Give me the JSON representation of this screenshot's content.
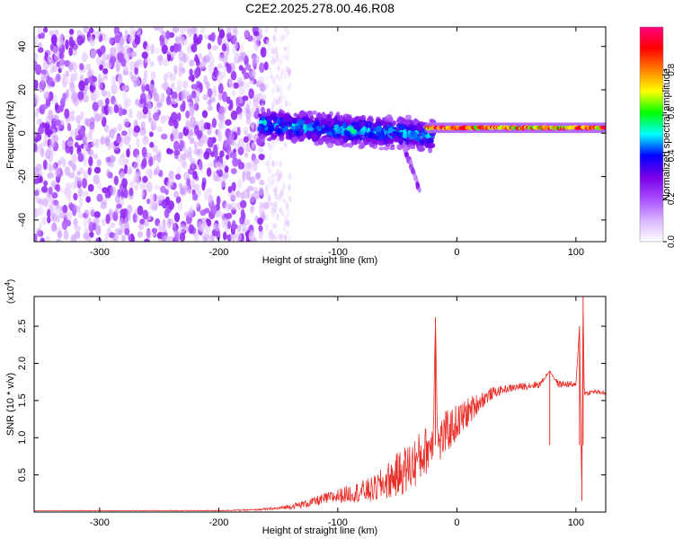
{
  "title": "C2E2.2025.278.00.46.R08",
  "chart_data": [
    {
      "type": "heatmap",
      "xlabel": "Height of straight line (km)",
      "ylabel": "Frequency (Hz)",
      "xlim": [
        -355,
        125
      ],
      "ylim": [
        -50,
        49
      ],
      "xticks": [
        -300,
        -200,
        -100,
        0,
        100
      ],
      "xtick_labels": [
        "-300",
        "-200",
        "-100",
        "0",
        "100"
      ],
      "yticks": [
        -40,
        -20,
        0,
        20,
        40
      ],
      "ytick_labels": [
        "-40",
        "-20",
        "0",
        "20",
        "40"
      ],
      "colorbar": {
        "label": "Normalized spectral amplitude",
        "range": [
          0,
          1
        ],
        "ticks": [
          0,
          0.2,
          0.4,
          0.6,
          0.8
        ],
        "tick_labels": [
          "0.0",
          "0.2",
          "0.4",
          "0.6",
          "0.8"
        ],
        "colors": [
          "#ffffff",
          "#d9b3ff",
          "#a64dff",
          "#7a00e6",
          "#0000ff",
          "#00ffff",
          "#00ff00",
          "#ffff00",
          "#ff8000",
          "#ff0000",
          "#ff0080"
        ]
      },
      "regions": [
        {
          "name": "noise",
          "x_range": [
            -355,
            -160
          ],
          "freq_range": [
            -50,
            49
          ],
          "amplitude": [
            0.05,
            0.15
          ]
        },
        {
          "name": "fade",
          "x_range": [
            -160,
            -140
          ],
          "freq_range": [
            -50,
            49
          ],
          "amplitude": [
            0.03,
            0.1
          ]
        },
        {
          "name": "band",
          "x_range": [
            -165,
            -20
          ],
          "freq_center_start": 4,
          "freq_center_end": -1,
          "half_width": 8,
          "amplitude": [
            0.15,
            0.5
          ]
        },
        {
          "name": "tail",
          "x_range": [
            -45,
            -30
          ],
          "freq_range": [
            -28,
            -5
          ],
          "amplitude": [
            0.1,
            0.3
          ]
        },
        {
          "name": "line",
          "x_range": [
            -25,
            125
          ],
          "freq_center": 2.5,
          "half_width": 2.5,
          "amplitude": [
            0.6,
            1.0
          ]
        }
      ]
    },
    {
      "type": "line",
      "xlabel": "Height of straight line (km)",
      "ylabel": "SNR (10 * v/v)",
      "y_multiplier": "(x10^4)",
      "y_multiplier_base": "(x10",
      "y_multiplier_exp": "4",
      "y_multiplier_close": ")",
      "xlim": [
        -355,
        125
      ],
      "ylim": [
        0,
        2.9
      ],
      "xticks": [
        -300,
        -200,
        -100,
        0,
        100
      ],
      "xtick_labels": [
        "-300",
        "-200",
        "-100",
        "0",
        "100"
      ],
      "yticks": [
        0.5,
        1.0,
        1.5,
        2.0,
        2.5
      ],
      "ytick_labels": [
        "0.5",
        "1.0",
        "1.5",
        "2.0",
        "2.5"
      ],
      "color": "#e8302a",
      "x": [
        -355,
        -300,
        -250,
        -200,
        -170,
        -150,
        -130,
        -110,
        -90,
        -70,
        -50,
        -40,
        -30,
        -20,
        -18,
        -16,
        -10,
        0,
        10,
        20,
        30,
        40,
        50,
        60,
        70,
        78,
        85,
        95,
        100,
        103,
        105,
        106,
        107,
        108,
        110,
        115,
        125
      ],
      "y": [
        0.02,
        0.02,
        0.02,
        0.02,
        0.03,
        0.05,
        0.1,
        0.18,
        0.25,
        0.3,
        0.5,
        0.6,
        0.75,
        0.95,
        2.62,
        0.9,
        1.05,
        1.2,
        1.35,
        1.5,
        1.6,
        1.65,
        1.68,
        1.7,
        1.72,
        1.9,
        1.72,
        1.72,
        1.7,
        2.5,
        0.15,
        2.9,
        1.6,
        1.6,
        1.6,
        1.62,
        1.6
      ],
      "noise": [
        0.0,
        0.003,
        0.003,
        0.005,
        0.01,
        0.02,
        0.05,
        0.08,
        0.12,
        0.18,
        0.3,
        0.35,
        0.35,
        0.3,
        0.0,
        0.3,
        0.3,
        0.25,
        0.2,
        0.12,
        0.08,
        0.05,
        0.05,
        0.05,
        0.05,
        0.0,
        0.05,
        0.04,
        0.04,
        0.0,
        0.0,
        0.0,
        0.03,
        0.03,
        0.03,
        0.03,
        0.03
      ]
    }
  ]
}
